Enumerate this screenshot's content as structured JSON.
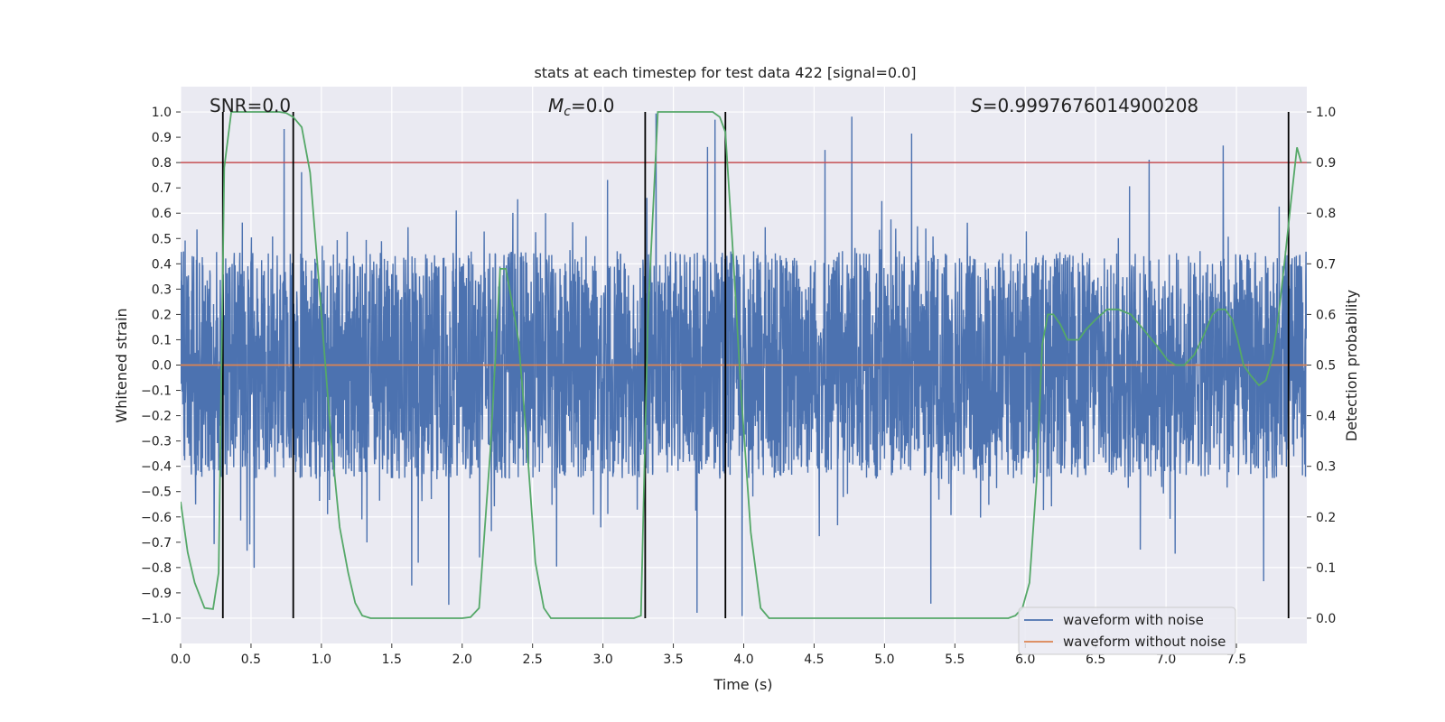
{
  "chart_data": {
    "type": "line",
    "title": "stats at each timestep for test data 422 [signal=0.0]",
    "xlabel": "Time (s)",
    "ylabel": "Whitened strain",
    "ylabel_right": "Detection probability",
    "xlim": [
      0.0,
      8.0
    ],
    "ylim": [
      -1.1,
      1.1
    ],
    "ylim_right": [
      -0.05,
      1.05
    ],
    "xticks": [
      "0.0",
      "0.5",
      "1.0",
      "1.5",
      "2.0",
      "2.5",
      "3.0",
      "3.5",
      "4.0",
      "4.5",
      "5.0",
      "5.5",
      "6.0",
      "6.5",
      "7.0",
      "7.5"
    ],
    "yticks": [
      "−1.0",
      "−0.9",
      "−0.8",
      "−0.7",
      "−0.6",
      "−0.5",
      "−0.4",
      "−0.3",
      "−0.2",
      "−0.1",
      "0.0",
      "0.1",
      "0.2",
      "0.3",
      "0.4",
      "0.5",
      "0.6",
      "0.7",
      "0.8",
      "0.9",
      "1.0"
    ],
    "yticks_right": [
      "0.0",
      "0.1",
      "0.2",
      "0.3",
      "0.4",
      "0.5",
      "0.6",
      "0.7",
      "0.8",
      "0.9",
      "1.0"
    ],
    "grid": true,
    "background": "#EAEAF2",
    "annotations": {
      "snr_prefix": "SNR",
      "snr_value": "=0.0",
      "mc_symbol": "M",
      "mc_sub": "c",
      "mc_value": "=0.0",
      "s_symbol": "S",
      "s_value": "=0.9997676014900208"
    },
    "threshold": {
      "value_right": 0.9,
      "color": "#C44E52"
    },
    "vertical_lines_x": [
      0.3,
      0.8,
      3.3,
      3.87,
      7.87
    ],
    "noise_series": {
      "name": "waveform with noise",
      "color": "#4C72B0",
      "amplitude_typical": 0.45,
      "amplitude_peak": 1.0,
      "samples_note_excluded": true
    },
    "clean_series": {
      "name": "waveform without noise",
      "color": "#DD8452",
      "value": 0.0
    },
    "probability_series": {
      "color": "#55A868",
      "x": [
        0.0,
        0.05,
        0.1,
        0.17,
        0.23,
        0.27,
        0.31,
        0.36,
        0.42,
        0.55,
        0.7,
        0.75,
        0.8,
        0.86,
        0.92,
        1.0,
        1.07,
        1.13,
        1.19,
        1.24,
        1.29,
        1.35,
        1.5,
        1.9,
        2.0,
        2.06,
        2.12,
        2.2,
        2.27,
        2.31,
        2.35,
        2.4,
        2.45,
        2.52,
        2.58,
        2.63,
        2.68,
        2.75,
        3.0,
        3.15,
        3.22,
        3.27,
        3.32,
        3.39,
        3.46,
        3.55,
        3.7,
        3.78,
        3.83,
        3.87,
        3.92,
        3.98,
        4.05,
        4.12,
        4.18,
        4.3,
        5.5,
        5.8,
        5.88,
        5.93,
        5.98,
        6.03,
        6.08,
        6.12,
        6.16,
        6.2,
        6.25,
        6.3,
        6.38,
        6.43,
        6.5,
        6.58,
        6.66,
        6.75,
        6.84,
        6.93,
        7.01,
        7.07,
        7.13,
        7.2,
        7.27,
        7.33,
        7.37,
        7.42,
        7.47,
        7.51,
        7.55,
        7.6,
        7.66,
        7.71,
        7.76,
        7.8,
        7.84,
        7.89,
        7.93,
        7.96
      ],
      "y": [
        0.23,
        0.13,
        0.07,
        0.02,
        0.018,
        0.09,
        0.89,
        1.0,
        1.0,
        1.0,
        1.0,
        0.998,
        0.99,
        0.97,
        0.88,
        0.6,
        0.35,
        0.18,
        0.09,
        0.03,
        0.005,
        0.0,
        0.0,
        0.0,
        0.0,
        0.002,
        0.02,
        0.33,
        0.69,
        0.69,
        0.63,
        0.55,
        0.38,
        0.11,
        0.02,
        0.0,
        0.0,
        0.0,
        0.0,
        0.0,
        0.0,
        0.005,
        0.6,
        1.0,
        1.0,
        1.0,
        1.0,
        1.0,
        0.99,
        0.96,
        0.74,
        0.45,
        0.17,
        0.02,
        0.0,
        0.0,
        0.0,
        0.0,
        0.0,
        0.005,
        0.02,
        0.07,
        0.27,
        0.54,
        0.6,
        0.6,
        0.58,
        0.55,
        0.55,
        0.57,
        0.59,
        0.61,
        0.61,
        0.6,
        0.57,
        0.54,
        0.51,
        0.5,
        0.5,
        0.52,
        0.56,
        0.6,
        0.61,
        0.61,
        0.59,
        0.55,
        0.5,
        0.48,
        0.46,
        0.47,
        0.52,
        0.6,
        0.7,
        0.83,
        0.93,
        0.9
      ]
    },
    "legend": {
      "placement": "bottom-right",
      "entries": [
        "waveform with noise",
        "waveform without noise"
      ]
    }
  }
}
